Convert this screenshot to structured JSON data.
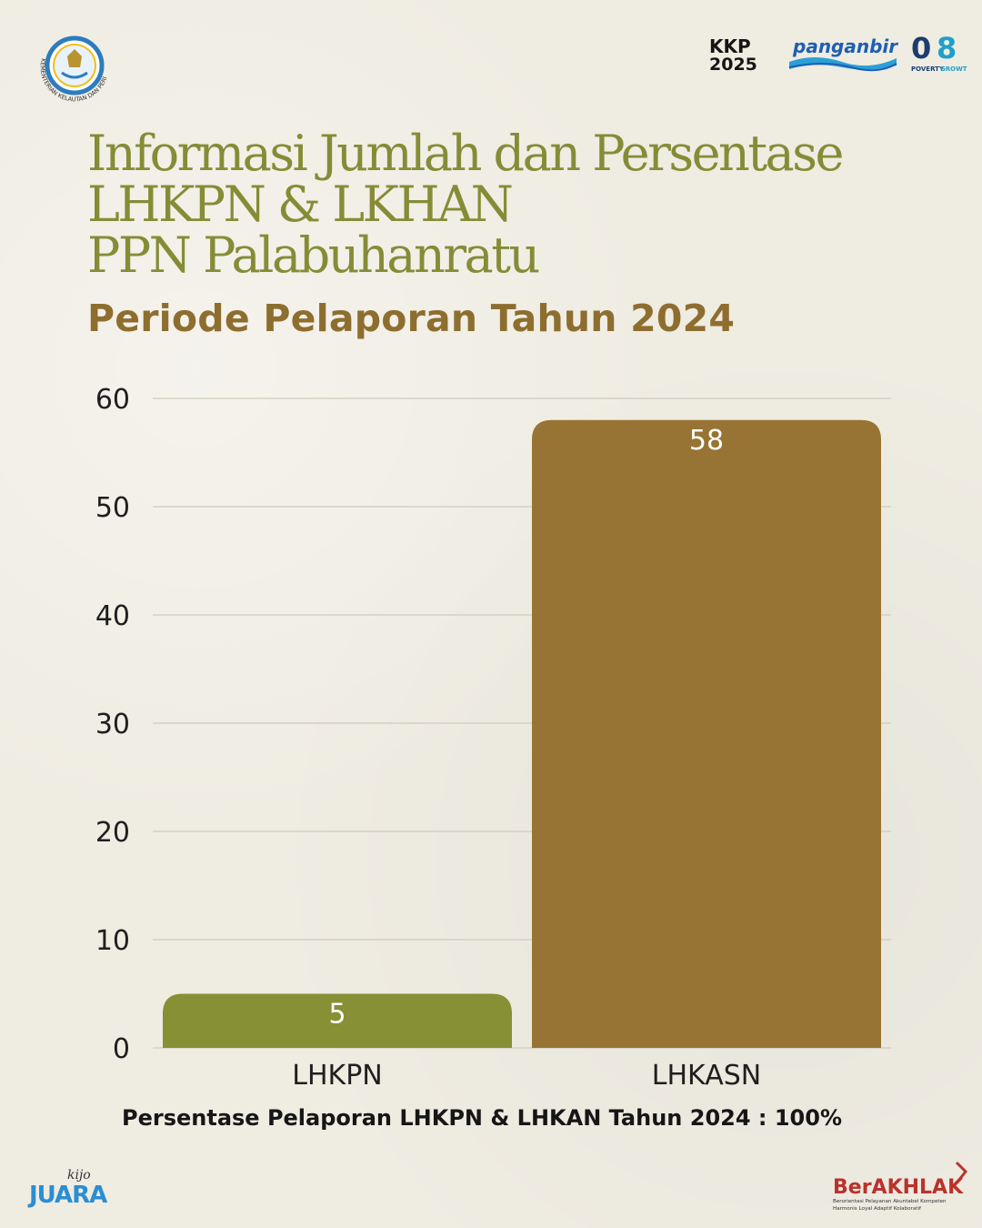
{
  "header": {
    "emblem_text": "KEMENTERIAN KELAUTAN DAN PERIKANAN",
    "logos": {
      "kkp_top": "KKP",
      "kkp_bottom": "2025",
      "panganbiru": "panganbiru",
      "poverty_value": "0",
      "growth_value": "8",
      "poverty_label": "POVERTY",
      "growth_label": "GROWTH"
    }
  },
  "title": {
    "line1": "Informasi  Jumlah dan Persentase",
    "line2": "LHKPN & LKHAN",
    "line3": "PPN Palabuhanratu",
    "subtitle": "Periode Pelaporan Tahun 2024"
  },
  "chart_data": {
    "type": "bar",
    "categories": [
      "LHKPN",
      "LHKASN"
    ],
    "values": [
      5,
      58
    ],
    "data_labels": [
      "5",
      "58"
    ],
    "colors": [
      "#879034",
      "#977433"
    ],
    "ylim": [
      0,
      60
    ],
    "yticks": [
      0,
      10,
      20,
      30,
      40,
      50,
      60
    ],
    "grid": true,
    "legend": "none"
  },
  "footnote": "Persentase Pelaporan LHKPN & LHKAN Tahun 2024 : 100%",
  "footer": {
    "juara_script": "kijo",
    "juara_text": "JUARA",
    "berakhlak_title": "BerAKHLAK",
    "berakhlak_line1": "Berorientasi Pelayanan Akuntabel Kompeten",
    "berakhlak_line2": "Harmonis Loyal Adaptif Kolaboratif"
  },
  "colors": {
    "title": "#868c36",
    "subtitle": "#8e6e2f",
    "background": "#efece2",
    "berakhlak_red": "#b8332c",
    "juara_blue": "#2a8ed2"
  }
}
